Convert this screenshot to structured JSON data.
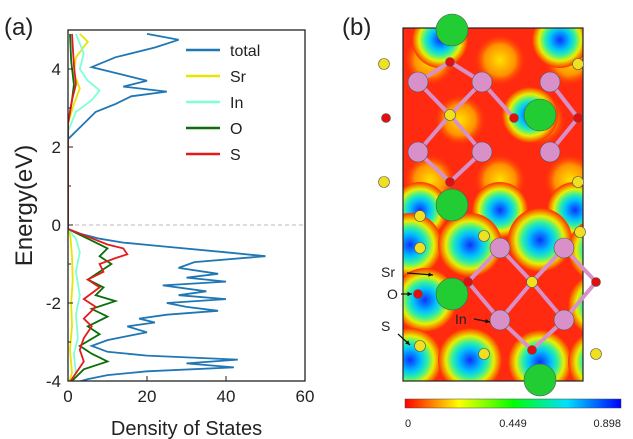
{
  "panels": {
    "a_label": "(a)",
    "b_label": "(b)"
  },
  "chart_data": [
    {
      "type": "line",
      "orientation": "horizontal-dos",
      "xlabel": "Density of States",
      "ylabel": "Energy(eV)",
      "xlim": [
        0,
        60
      ],
      "ylim": [
        -4,
        5
      ],
      "xticks": [
        0,
        20,
        40,
        60
      ],
      "yticks": [
        -4,
        -2,
        0,
        2,
        4
      ],
      "fermi_level": 0,
      "legend_position": "top-right",
      "series": [
        {
          "name": "total",
          "color": "#1f77b4",
          "points": [
            [
              0,
              -4.1
            ],
            [
              5,
              -3.95
            ],
            [
              10,
              -3.85
            ],
            [
              20,
              -3.75
            ],
            [
              42,
              -3.65
            ],
            [
              30,
              -3.55
            ],
            [
              43,
              -3.45
            ],
            [
              20,
              -3.35
            ],
            [
              10,
              -3.25
            ],
            [
              6,
              -3.1
            ],
            [
              10,
              -2.95
            ],
            [
              15,
              -2.85
            ],
            [
              20,
              -2.75
            ],
            [
              15,
              -2.6
            ],
            [
              22,
              -2.5
            ],
            [
              18,
              -2.4
            ],
            [
              25,
              -2.3
            ],
            [
              38,
              -2.2
            ],
            [
              30,
              -2.1
            ],
            [
              25,
              -2.0
            ],
            [
              40,
              -1.9
            ],
            [
              28,
              -1.8
            ],
            [
              35,
              -1.7
            ],
            [
              24,
              -1.55
            ],
            [
              40,
              -1.45
            ],
            [
              30,
              -1.35
            ],
            [
              38,
              -1.25
            ],
            [
              28,
              -1.1
            ],
            [
              32,
              -0.95
            ],
            [
              50,
              -0.8
            ],
            [
              40,
              -0.7
            ],
            [
              24,
              -0.55
            ],
            [
              14,
              -0.45
            ],
            [
              8,
              -0.35
            ],
            [
              3,
              -0.22
            ],
            [
              0,
              -0.1
            ],
            [
              0,
              2.2
            ],
            [
              2,
              2.4
            ],
            [
              4,
              2.6
            ],
            [
              7,
              2.9
            ],
            [
              12,
              3.1
            ],
            [
              16,
              3.3
            ],
            [
              25,
              3.42
            ],
            [
              14,
              3.55
            ],
            [
              20,
              3.7
            ],
            [
              14,
              3.85
            ],
            [
              6,
              4.05
            ],
            [
              12,
              4.3
            ],
            [
              22,
              4.55
            ],
            [
              28,
              4.75
            ],
            [
              20,
              4.9
            ]
          ]
        },
        {
          "name": "Sr",
          "color": "#e6e600",
          "points": [
            [
              0,
              -4.1
            ],
            [
              1,
              -3.8
            ],
            [
              0.5,
              -3.2
            ],
            [
              1,
              -2.6
            ],
            [
              0.8,
              -2.0
            ],
            [
              1.2,
              -1.4
            ],
            [
              1,
              -0.8
            ],
            [
              0.6,
              -0.3
            ],
            [
              0,
              -0.1
            ],
            [
              0,
              2.6
            ],
            [
              1.5,
              3.1
            ],
            [
              3,
              3.5
            ],
            [
              1.5,
              3.9
            ],
            [
              2,
              4.3
            ],
            [
              5,
              4.7
            ],
            [
              3,
              4.9
            ]
          ]
        },
        {
          "name": "In",
          "color": "#7fffd4",
          "points": [
            [
              0,
              -4.1
            ],
            [
              2,
              -3.8
            ],
            [
              1.5,
              -3.3
            ],
            [
              2.5,
              -2.9
            ],
            [
              2,
              -2.3
            ],
            [
              3,
              -1.8
            ],
            [
              2,
              -1.2
            ],
            [
              3,
              -0.7
            ],
            [
              2,
              -0.35
            ],
            [
              0,
              -0.1
            ],
            [
              0,
              2.4
            ],
            [
              2,
              2.9
            ],
            [
              6,
              3.2
            ],
            [
              8,
              3.45
            ],
            [
              5,
              3.7
            ],
            [
              3,
              4.0
            ],
            [
              4,
              4.4
            ],
            [
              2,
              4.9
            ]
          ]
        },
        {
          "name": "O",
          "color": "#0a6e0a",
          "points": [
            [
              0,
              -4.1
            ],
            [
              4,
              -3.7
            ],
            [
              10,
              -3.5
            ],
            [
              6,
              -3.3
            ],
            [
              3,
              -3.1
            ],
            [
              8,
              -2.8
            ],
            [
              5,
              -2.6
            ],
            [
              10,
              -2.35
            ],
            [
              6,
              -2.15
            ],
            [
              12,
              -1.95
            ],
            [
              7,
              -1.8
            ],
            [
              9,
              -1.6
            ],
            [
              5,
              -1.4
            ],
            [
              8,
              -1.2
            ],
            [
              11,
              -1.0
            ],
            [
              8,
              -0.8
            ],
            [
              10,
              -0.6
            ],
            [
              6,
              -0.4
            ],
            [
              3,
              -0.25
            ],
            [
              0,
              -0.1
            ],
            [
              0,
              2.6
            ],
            [
              1,
              3.2
            ],
            [
              1.5,
              3.6
            ],
            [
              0.8,
              4.2
            ],
            [
              0.5,
              4.9
            ]
          ]
        },
        {
          "name": "S",
          "color": "#e41a1c",
          "points": [
            [
              0,
              -4.1
            ],
            [
              2,
              -3.8
            ],
            [
              4,
              -3.5
            ],
            [
              3,
              -3.2
            ],
            [
              4,
              -2.9
            ],
            [
              6,
              -2.6
            ],
            [
              4,
              -2.4
            ],
            [
              7,
              -2.1
            ],
            [
              4,
              -1.9
            ],
            [
              8,
              -1.6
            ],
            [
              5,
              -1.4
            ],
            [
              9,
              -1.2
            ],
            [
              8,
              -1.0
            ],
            [
              12,
              -0.85
            ],
            [
              15,
              -0.75
            ],
            [
              14,
              -0.6
            ],
            [
              10,
              -0.5
            ],
            [
              5,
              -0.3
            ],
            [
              0,
              -0.1
            ],
            [
              0,
              2.6
            ],
            [
              1,
              3.2
            ],
            [
              2,
              3.6
            ],
            [
              1.5,
              4.1
            ],
            [
              1,
              4.9
            ]
          ]
        }
      ]
    },
    {
      "type": "heatmap",
      "description_role": "electron localization function map",
      "colorbar_ticks": [
        "0",
        "0.449",
        "0.898"
      ],
      "colorbar_range": [
        0,
        0.898
      ],
      "colormap": [
        "#ff0000",
        "#ffff00",
        "#00ff00",
        "#00e0ff",
        "#0000ff"
      ],
      "annotations": [
        "Sr",
        "O",
        "In",
        "S"
      ],
      "atom_colors": {
        "Sr": "#22cc33",
        "In": "#d890c8",
        "O": "#e01010",
        "S": "#f0e020"
      }
    }
  ]
}
